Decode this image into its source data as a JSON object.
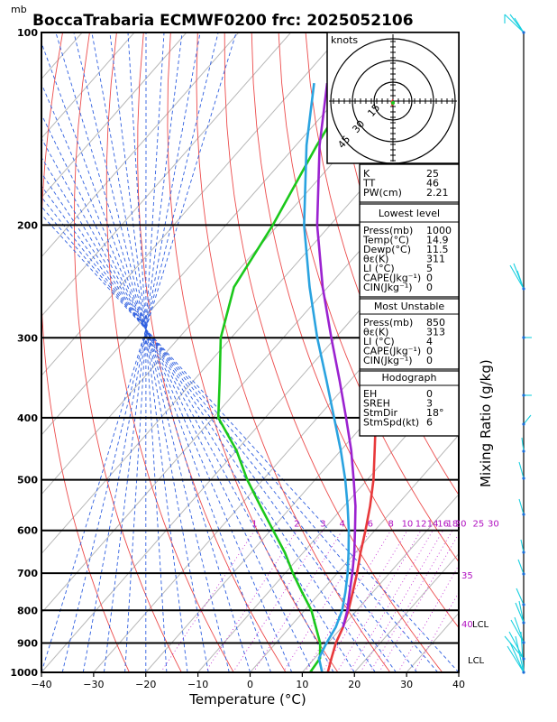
{
  "chart_data": {
    "type": "line",
    "title": "BoccaTrabaria ECMWF0200  frc: 2025052106",
    "units_mb": "mb",
    "xlabel": "Temperature (°C)",
    "ylabel_right": "Mixing Ratio  (g/kg)",
    "x_ticks": [
      -40,
      -30,
      -20,
      -10,
      0,
      10,
      20,
      30,
      40
    ],
    "pressure_ticks": [
      100,
      200,
      300,
      400,
      500,
      600,
      700,
      800,
      900,
      1000
    ],
    "xlim": [
      -40,
      40
    ],
    "ylim_mb": [
      1000,
      100
    ],
    "mixing_ratio_labels": [
      "1",
      "2",
      "3",
      "4",
      "6",
      "8",
      "10",
      "12",
      "14",
      "16",
      "18",
      "20",
      "25",
      "30"
    ],
    "series": [
      {
        "color": "#e8393b",
        "pressure": [
          1000,
          950,
          900,
          850,
          800,
          750,
          700,
          650,
          600,
          550,
          500,
          450,
          400,
          350,
          300,
          250,
          200,
          150,
          100
        ],
        "values": [
          14.9,
          13.2,
          11.5,
          10.2,
          8.4,
          6.2,
          3.8,
          1.0,
          -1.8,
          -5.0,
          -8.8,
          -13.5,
          -18.8,
          -25.0,
          -32.0,
          -40.0,
          -35.0,
          -23.0,
          -10.0
        ]
      },
      {
        "color": "#1bc81b",
        "pressure": [
          1000,
          950,
          900,
          850,
          800,
          750,
          700,
          650,
          600,
          550,
          500,
          450,
          400,
          350,
          300,
          250,
          200,
          150,
          100
        ],
        "values": [
          11.5,
          11.0,
          8.5,
          5.0,
          1.3,
          -3.5,
          -8.5,
          -13.5,
          -19.5,
          -26.0,
          -33.0,
          -40.0,
          -49.0,
          -55.0,
          -62.0,
          -68.0,
          -71.0,
          -76.0,
          -82.0
        ]
      },
      {
        "color": "#2aa3e0",
        "pressure": [
          1000,
          950,
          900,
          850,
          800,
          750,
          700,
          650,
          600,
          550,
          500,
          450,
          400,
          350,
          300,
          250,
          200,
          150,
          120
        ],
        "values": [
          13.8,
          10.8,
          9.7,
          8.8,
          7.2,
          4.8,
          2.0,
          -1.3,
          -5.0,
          -9.3,
          -14.2,
          -20.0,
          -26.8,
          -34.5,
          -43.5,
          -53.5,
          -65.0,
          -78.0,
          -87.0
        ]
      },
      {
        "color": "#9b22d0",
        "pressure": [
          850,
          800,
          750,
          700,
          650,
          600,
          550,
          500,
          450,
          400,
          350,
          300,
          250,
          200,
          150,
          120
        ],
        "values": [
          10.2,
          8.2,
          5.6,
          2.9,
          -0.2,
          -3.8,
          -7.8,
          -12.6,
          -18.0,
          -24.5,
          -32.0,
          -40.8,
          -51.0,
          -62.5,
          -75.5,
          -84.5
        ]
      }
    ]
  },
  "stats": {
    "rows1": [
      {
        "k": "K",
        "v": "25"
      },
      {
        "k": "TT",
        "v": "46"
      },
      {
        "k": "PW(cm)",
        "v": "2.21"
      }
    ],
    "lowest_header": "Lowest level",
    "rows2": [
      {
        "k": "Press(mb)",
        "v": "1000"
      },
      {
        "k": "Temp(°C)",
        "v": "14.9"
      },
      {
        "k": "Dewp(°C)",
        "v": "11.5"
      },
      {
        "k": "θε(K)",
        "v": "311"
      },
      {
        "k": "LI (°C)",
        "v": "5"
      },
      {
        "k": "CAPE(Jkg⁻¹)",
        "v": "0"
      },
      {
        "k": "CIN(Jkg⁻¹)",
        "v": "0"
      }
    ],
    "unstable_header": "Most Unstable",
    "rows3": [
      {
        "k": "Press(mb)",
        "v": "850"
      },
      {
        "k": "θε(K)",
        "v": "313"
      },
      {
        "k": "LI (°C)",
        "v": "4"
      },
      {
        "k": "CAPE(Jkg⁻¹)",
        "v": "0"
      },
      {
        "k": "CIN(Jkg⁻¹)",
        "v": "0"
      }
    ],
    "hodo_header": "Hodograph",
    "rows4": [
      {
        "k": "EH",
        "v": "0"
      },
      {
        "k": "SREH",
        "v": "3"
      },
      {
        "k": "StmDir",
        "v": "18°"
      },
      {
        "k": "StmSpd(kt)",
        "v": "6"
      }
    ]
  },
  "hodograph": {
    "units": "knots",
    "ring_labels": [
      "15",
      "30",
      "45"
    ]
  },
  "annotations": {
    "lcl": "LCL",
    "lcl_right_upper": "LCL",
    "right_35": "35",
    "right_40": "40"
  },
  "colors": {
    "temperature": "#e8393b",
    "dewpoint": "#1bc81b",
    "parcel": "#2aa3e0",
    "virtual": "#9b22d0",
    "wind": "#1ad0e0"
  }
}
